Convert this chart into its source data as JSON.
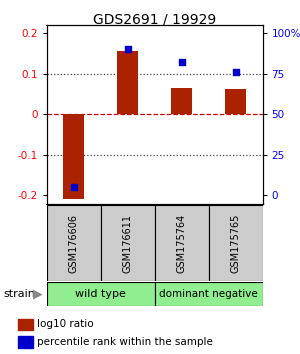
{
  "title": "GDS2691 / 19929",
  "samples": [
    "GSM176606",
    "GSM176611",
    "GSM175764",
    "GSM175765"
  ],
  "log10_ratio": [
    -0.21,
    0.155,
    0.065,
    0.062
  ],
  "percentile_rank": [
    5,
    90,
    82,
    76
  ],
  "bar_color": "#aa2200",
  "dot_color": "#0000cc",
  "ylim": [
    -0.22,
    0.22
  ],
  "yticks": [
    -0.2,
    -0.1,
    0,
    0.1,
    0.2
  ],
  "ytick_labels": [
    "-0.2",
    "-0.1",
    "0",
    "0.1",
    "0.2"
  ],
  "y2ticks_pct": [
    0,
    25,
    50,
    75,
    100
  ],
  "y2tick_labels": [
    "0",
    "25",
    "50",
    "75",
    "100%"
  ],
  "hline_color": "#cc0000",
  "dot_hline_color": "#cc0000",
  "dotted_color": "#444444",
  "background_color": "#ffffff",
  "label_box_color": "#cccccc",
  "group_wt_color": "#90ee90",
  "group_dn_color": "#90ee90",
  "strain_label": "strain",
  "legend_red": "log10 ratio",
  "legend_blue": "percentile rank within the sample",
  "title_fontsize": 10,
  "tick_fontsize": 7.5,
  "sample_fontsize": 7,
  "group_fontsize": 8,
  "legend_fontsize": 7.5,
  "strain_fontsize": 8
}
